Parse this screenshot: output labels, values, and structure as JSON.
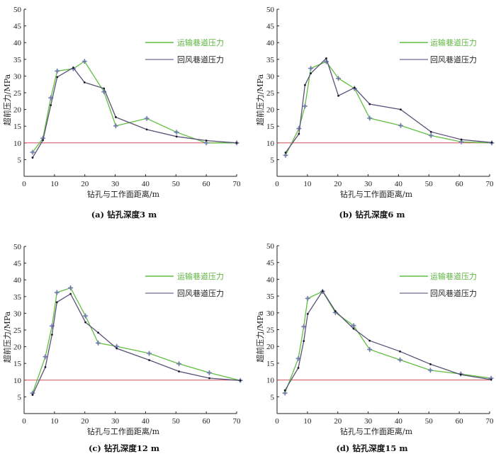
{
  "chart_data": [
    {
      "type": "line",
      "caption": "(a) 钻孔深度3 m",
      "xlabel": "钻孔与工作面距离/m",
      "ylabel": "超前压力/MPa",
      "xlim": [
        0,
        70
      ],
      "ylim": [
        0,
        50
      ],
      "xticks": [
        "0",
        "10",
        "20",
        "30",
        "40",
        "50",
        "60",
        "70"
      ],
      "yticks": [
        "5",
        "10",
        "15",
        "20",
        "25",
        "30",
        "35",
        "40",
        "45",
        "50"
      ],
      "reference_line": {
        "y": 10,
        "color": "#d0505a"
      },
      "legend_position": "top-right",
      "series": [
        {
          "name": "运输巷道压力",
          "color": "#5fbf40",
          "marker": "star",
          "x": [
            2.8,
            6.2,
            8.8,
            10.9,
            16.2,
            19.9,
            26.3,
            30.2,
            40.4,
            50.2,
            60,
            70
          ],
          "y": [
            7.2,
            11.4,
            23.5,
            31.5,
            32.2,
            34.4,
            25.3,
            15.1,
            17.3,
            13.2,
            10,
            10
          ]
        },
        {
          "name": "回风巷道压力",
          "color": "#5a5078",
          "marker": "dot",
          "x": [
            2.8,
            6.2,
            8.8,
            10.9,
            16.2,
            19.9,
            26.3,
            30.2,
            40.4,
            50.2,
            60,
            70
          ],
          "y": [
            5.6,
            10.8,
            21.3,
            29.7,
            32.5,
            28.1,
            26.3,
            17.7,
            14,
            11.9,
            10.7,
            10
          ]
        }
      ]
    },
    {
      "type": "line",
      "caption": "(b) 钻孔深度6 m",
      "xlabel": "钻孔与工作面距离/m",
      "ylabel": "超前压力/MPa",
      "xlim": [
        0,
        70
      ],
      "ylim": [
        0,
        50
      ],
      "xticks": [
        "0",
        "10",
        "20",
        "30",
        "40",
        "50",
        "60",
        "70"
      ],
      "yticks": [
        "5",
        "10",
        "15",
        "20",
        "25",
        "30",
        "35",
        "40",
        "45",
        "50"
      ],
      "reference_line": {
        "y": 10,
        "color": "#d0505a"
      },
      "legend_position": "top-right",
      "series": [
        {
          "name": "运输巷道压力",
          "color": "#5fbf40",
          "marker": "star",
          "x": [
            2.8,
            7.2,
            9.2,
            11.1,
            16.2,
            20.2,
            25.5,
            30.5,
            40.7,
            50.7,
            60.7,
            70.7
          ],
          "y": [
            6.3,
            14.3,
            21,
            32.3,
            34.3,
            29.3,
            26.3,
            17.4,
            15.2,
            12.2,
            10.3,
            10
          ]
        },
        {
          "name": "回风巷道压力",
          "color": "#5a5078",
          "marker": "dot",
          "x": [
            2.8,
            7.2,
            9.2,
            11.1,
            16.2,
            20.2,
            25.5,
            30.5,
            40.7,
            50.7,
            60.7,
            70.7
          ],
          "y": [
            7.1,
            12.7,
            27.3,
            30.8,
            35.3,
            24.1,
            26.5,
            21.6,
            20,
            13.3,
            11,
            10.1
          ]
        }
      ]
    },
    {
      "type": "line",
      "caption": "(c) 钻孔深度12 m",
      "xlabel": "钻孔与工作面距离/m",
      "ylabel": "超前压力/MPa",
      "xlim": [
        0,
        70
      ],
      "ylim": [
        0,
        50
      ],
      "xticks": [
        "0",
        "10",
        "20",
        "30",
        "40",
        "50",
        "60",
        "70"
      ],
      "yticks": [
        "5",
        "10",
        "15",
        "20",
        "25",
        "30",
        "35",
        "40",
        "45",
        "50"
      ],
      "reference_line": {
        "y": 10,
        "color": "#d0505a"
      },
      "legend_position": "top-right",
      "series": [
        {
          "name": "运输巷道压力",
          "color": "#5fbf40",
          "marker": "star",
          "x": [
            2.8,
            7,
            9.2,
            10.8,
            15.3,
            20.2,
            24.4,
            30.5,
            41.2,
            51,
            61,
            71.2
          ],
          "y": [
            6.1,
            17,
            26.2,
            36.2,
            37.6,
            29.2,
            21.1,
            20.1,
            18,
            14.9,
            12.2,
            9.9
          ]
        },
        {
          "name": "回风巷道压力",
          "color": "#5a5078",
          "marker": "dot",
          "x": [
            2.8,
            7,
            9.2,
            10.8,
            15.3,
            20.2,
            24.4,
            30.5,
            41.2,
            51,
            61,
            71.2
          ],
          "y": [
            5.6,
            13.9,
            23.6,
            33.3,
            35.8,
            27.3,
            24.2,
            19.5,
            16,
            12.6,
            10.6,
            9.9
          ]
        }
      ]
    },
    {
      "type": "line",
      "caption": "(d) 钻孔深度15 m",
      "xlabel": "钻孔与工作面距离/m",
      "ylabel": "超前压力/MPa",
      "xlim": [
        0,
        70
      ],
      "ylim": [
        0,
        50
      ],
      "xticks": [
        "0",
        "10",
        "20",
        "30",
        "40",
        "50",
        "60",
        "70"
      ],
      "yticks": [
        "5",
        "10",
        "15",
        "20",
        "25",
        "30",
        "35",
        "40",
        "45",
        "50"
      ],
      "reference_line": {
        "y": 10,
        "color": "#d0505a"
      },
      "legend_position": "top-right",
      "series": [
        {
          "name": "运输巷道压力",
          "color": "#5fbf40",
          "marker": "star",
          "x": [
            2.6,
            7,
            8.8,
            10.1,
            15,
            19.2,
            25.2,
            30.5,
            40.5,
            50.5,
            60.5,
            70.5
          ],
          "y": [
            6.1,
            16.4,
            25.9,
            34.3,
            36.4,
            30.1,
            26.2,
            19.1,
            16,
            12.9,
            11.8,
            10.5
          ]
        },
        {
          "name": "回风巷道压力",
          "color": "#5a5078",
          "marker": "dot",
          "x": [
            2.6,
            7,
            8.8,
            10.1,
            15,
            19.2,
            25.2,
            30.5,
            40.5,
            50.5,
            60.5,
            70.5
          ],
          "y": [
            6.9,
            13.6,
            21.6,
            29.7,
            36.5,
            30.5,
            25.3,
            21.7,
            18.5,
            14.7,
            11.6,
            10.1
          ]
        }
      ]
    }
  ]
}
